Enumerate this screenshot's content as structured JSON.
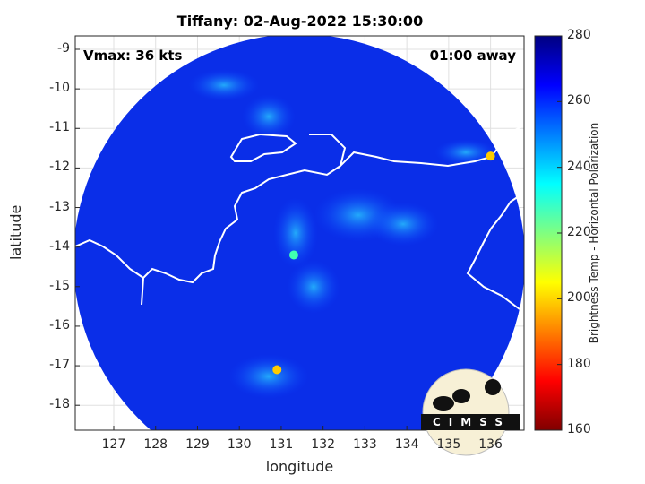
{
  "chart_data": {
    "type": "heatmap",
    "title": "Tiffany: 02-Aug-2022 15:30:00",
    "xlabel": "longitude",
    "ylabel": "latitude",
    "xlim": [
      126.08,
      136.8
    ],
    "ylim": [
      -18.63,
      -8.66
    ],
    "xticks": [
      "127",
      "128",
      "129",
      "130",
      "131",
      "132",
      "133",
      "134",
      "135",
      "136"
    ],
    "yticks": [
      "-9",
      "-10",
      "-11",
      "-12",
      "-13",
      "-14",
      "-15",
      "-16",
      "-17",
      "-18"
    ],
    "grid": true,
    "annotations": {
      "vmax": "Vmax: 36 kts",
      "away": "01:00 away"
    },
    "colorbar": {
      "label": "Brightness Temp - Horizontal Polarization",
      "range": [
        160,
        280
      ],
      "ticks": [
        "160",
        "180",
        "200",
        "220",
        "240",
        "260",
        "280"
      ],
      "colormap": "jet"
    },
    "features": [
      {
        "lon": 131.3,
        "lat": -14.2,
        "value": 225
      },
      {
        "lon": 130.9,
        "lat": -17.1,
        "value": 185
      },
      {
        "lon": 136.0,
        "lat": -11.7,
        "value": 190
      }
    ],
    "background_value": 270
  },
  "logo": {
    "text": "CIMSS"
  }
}
